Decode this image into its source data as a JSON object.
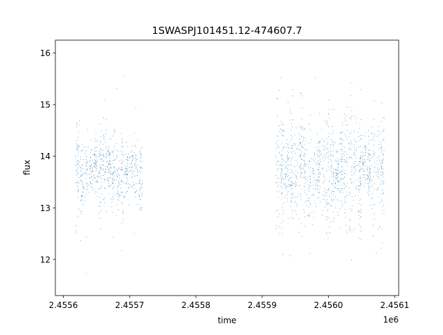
{
  "chart_data": {
    "type": "scatter",
    "title": "1SWASPJ101451.12-474607.7",
    "xlabel": "time",
    "ylabel": "flux",
    "x_offset_label": "1e6",
    "x_tick_labels": [
      "2.4556",
      "2.4557",
      "2.4558",
      "2.4559",
      "2.4560",
      "2.4561"
    ],
    "x_tick_values": [
      2455600,
      2455700,
      2455800,
      2455900,
      2456000,
      2456100
    ],
    "y_tick_labels": [
      "12",
      "13",
      "14",
      "15",
      "16"
    ],
    "y_tick_values": [
      12,
      13,
      14,
      15,
      16
    ],
    "xlim": [
      2455588,
      2456106
    ],
    "ylim": [
      11.3,
      16.25
    ],
    "grid": false,
    "legend": "none",
    "marker_color": "#1f77b4",
    "series": [
      {
        "segments": [
          {
            "x_range": [
              2455618,
              2455720
            ],
            "center": 13.7,
            "spread": 0.35,
            "density": 1.0
          },
          {
            "x_range": [
              2455920,
              2456085
            ],
            "center": 13.75,
            "spread": 0.45,
            "density": 1.0
          }
        ]
      }
    ]
  }
}
